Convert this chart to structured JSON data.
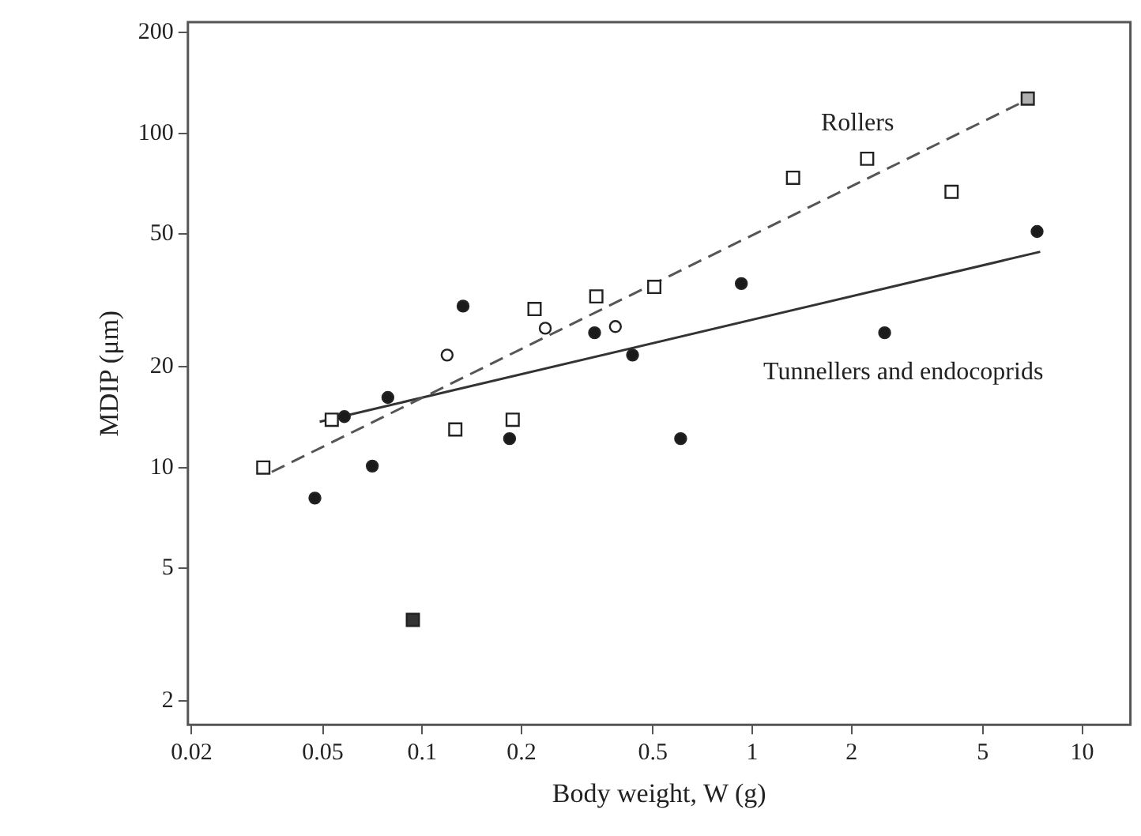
{
  "chart_data": {
    "type": "scatter",
    "xlabel": "Body weight, W (g)",
    "ylabel": "MDIP (μm)",
    "log": "xy",
    "grid": false,
    "legend": false,
    "xlim": [
      0.0195,
      14
    ],
    "xticks": [
      0.02,
      0.05,
      0.1,
      0.2,
      0.5,
      1,
      2,
      5,
      10
    ],
    "ylim": [
      1.7,
      215
    ],
    "yticks": [
      2,
      5,
      10,
      20,
      50,
      100,
      200
    ],
    "series": [
      {
        "marker": "square",
        "color": "#ffffff",
        "x": [
          0.033,
          0.0532,
          0.126,
          0.188,
          0.219,
          0.337,
          0.505,
          1.33,
          2.23,
          4.02
        ],
        "values": [
          10,
          13.9,
          13,
          13.9,
          29.8,
          32.5,
          34.7,
          73.6,
          83.9,
          66.8
        ]
      },
      {
        "marker": "square",
        "color": "#b0b0b0",
        "x": [
          6.84
        ],
        "values": [
          127
        ]
      },
      {
        "marker": "square",
        "color": "#333333",
        "x": [
          0.0937
        ],
        "values": [
          3.5
        ]
      },
      {
        "marker": "circle",
        "color": "#1a1a1a",
        "x": [
          0.0473,
          0.0581,
          0.0706,
          0.0787,
          0.133,
          0.184,
          0.333,
          0.434,
          0.607,
          0.927,
          2.52,
          7.3
        ],
        "values": [
          8.1,
          14.2,
          10.1,
          16.2,
          30.4,
          12.2,
          25.3,
          21.7,
          12.2,
          35.5,
          25.3,
          50.8
        ]
      },
      {
        "marker": "circle",
        "color": "#ffffff",
        "x": [
          0.119,
          0.236,
          0.385
        ],
        "values": [
          21.7,
          26.1,
          26.4
        ]
      },
      {
        "type": "line",
        "name": "Rollers",
        "line_style": "dashed",
        "marker": "none",
        "color": "#555555",
        "x": [
          0.035,
          6.6
        ],
        "values": [
          9.7,
          124
        ]
      },
      {
        "type": "line",
        "name": "Tunnellers and endocoprids",
        "line_style": "solid",
        "marker": "none",
        "color": "#333333",
        "x": [
          0.0489,
          7.46
        ],
        "values": [
          13.7,
          44.2
        ]
      }
    ]
  }
}
